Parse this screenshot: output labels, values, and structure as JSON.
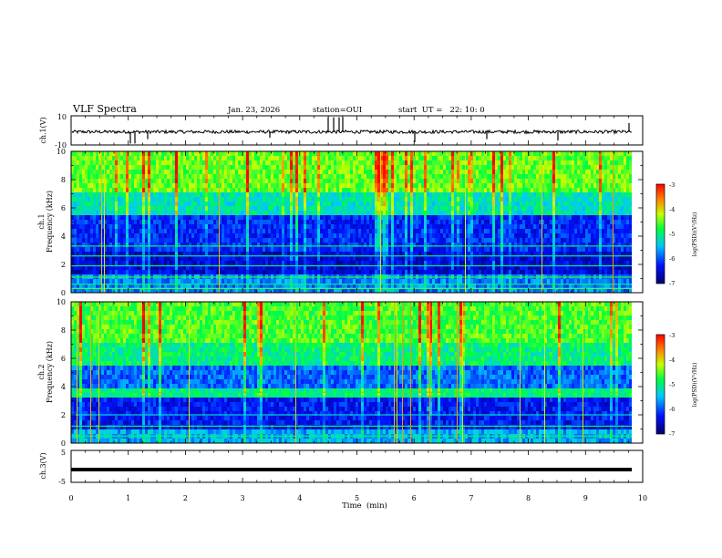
{
  "header": {
    "title": "VLF Spectra",
    "date": "Jan. 23, 2026",
    "station": "station=OUI",
    "start": "start  UT =   22: 10: 0"
  },
  "colorbar": {
    "label": "log(PSD)(V²/Hz)",
    "min": -7,
    "max": -3,
    "ticks": [
      "-3",
      "-4",
      "-5",
      "-6",
      "-7"
    ]
  },
  "chart_data": [
    {
      "type": "line",
      "name": "ch1-waveform",
      "ylabel": "ch.1(V)",
      "ylim": [
        -10,
        10
      ],
      "yticks": [
        "10",
        "-10"
      ],
      "baseline": -1,
      "notes": "noisy waveform near -1 V with sporadic spikes"
    },
    {
      "type": "heatmap",
      "name": "ch1-spectrogram",
      "ylabel": "ch.1\nFrequency  (kHz)",
      "ylim": [
        0,
        10
      ],
      "yticks": [
        "0",
        "2",
        "4",
        "6",
        "8",
        "10"
      ],
      "xlim": [
        0,
        10
      ],
      "color_scale": "log(PSD)(V²/Hz) from -7 to -3"
    },
    {
      "type": "heatmap",
      "name": "ch2-spectrogram",
      "ylabel": "ch.2\nFrequency  (kHz)",
      "ylim": [
        0,
        10
      ],
      "yticks": [
        "0",
        "2",
        "4",
        "6",
        "8",
        "10"
      ],
      "xlim": [
        0,
        10
      ],
      "color_scale": "log(PSD)(V²/Hz) from -7 to -3"
    },
    {
      "type": "line",
      "name": "ch3-waveform",
      "ylabel": "ch.3(V)",
      "ylim": [
        -5,
        5
      ],
      "yticks": [
        "5",
        "-5"
      ],
      "value": -1,
      "notes": "flat thick line at about -1 V"
    }
  ],
  "xaxis": {
    "label": "Time  (min)",
    "ticks": [
      "0",
      "1",
      "2",
      "3",
      "4",
      "5",
      "6",
      "7",
      "8",
      "9",
      "10"
    ],
    "range": [
      0,
      10
    ]
  }
}
